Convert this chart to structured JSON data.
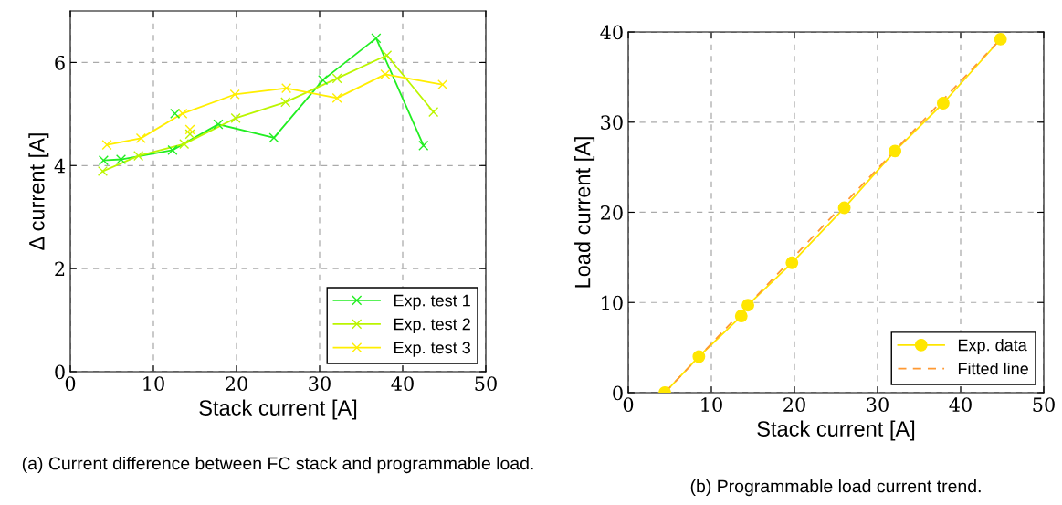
{
  "chart_data": [
    {
      "type": "line",
      "xlabel": "Stack current [A]",
      "ylabel": "Δ current [A]",
      "xlim": [
        0,
        50
      ],
      "ylim": [
        0,
        7
      ],
      "xticks": [
        0,
        10,
        20,
        30,
        40,
        50
      ],
      "yticks": [
        0,
        2,
        4,
        6
      ],
      "grid": true,
      "legend": "bottom right",
      "marker": "cross",
      "annotations": [
        "(a) Current difference between FC stack and programmable load."
      ],
      "series": [
        {
          "name": "Exp. test 1",
          "color": "#22ee22",
          "x": [
            4.0,
            6.1,
            12.3,
            17.8,
            24.5,
            30.4,
            36.8,
            42.5
          ],
          "values": [
            4.1,
            4.12,
            4.3,
            4.8,
            4.54,
            5.66,
            6.47,
            4.39
          ]
        },
        {
          "name": "Exp. test 2",
          "color": "#bbf500",
          "x": [
            3.9,
            8.2,
            13.7,
            19.9,
            25.9,
            32.1,
            38.1,
            43.7
          ],
          "values": [
            3.89,
            4.19,
            4.42,
            4.92,
            5.23,
            5.69,
            6.14,
            5.04
          ]
        },
        {
          "name": "Exp. test 3",
          "color": "#ffee00",
          "x": [
            4.4,
            8.5,
            13.5,
            19.8,
            26.0,
            32.1,
            37.9,
            44.8
          ],
          "values": [
            4.4,
            4.53,
            5.01,
            5.38,
            5.5,
            5.31,
            5.77,
            5.57
          ]
        },
        {
          "type": "scatter",
          "color": "#22ee22",
          "x": [
            12.6
          ],
          "values": [
            5.01
          ]
        },
        {
          "type": "scatter",
          "color": "#bbf500",
          "x": [
            14.4
          ],
          "values": [
            4.61
          ]
        },
        {
          "type": "scatter",
          "color": "#ffee00",
          "x": [
            14.4
          ],
          "values": [
            4.7
          ]
        }
      ]
    },
    {
      "type": "line",
      "xlabel": "Stack current [A]",
      "ylabel": "Load current [A]",
      "xlim": [
        0,
        50
      ],
      "ylim": [
        0,
        40
      ],
      "xticks": [
        0,
        10,
        20,
        30,
        40,
        50
      ],
      "yticks": [
        0,
        10,
        20,
        30,
        40
      ],
      "grid": true,
      "legend": "bottom right",
      "annotations": [
        "(b) Programmable load current trend."
      ],
      "series": [
        {
          "name": "Exp. data",
          "color": "#ffe600",
          "marker": "circle",
          "x": [
            4.4,
            8.5,
            13.6,
            14.4,
            19.7,
            26.0,
            32.1,
            37.9,
            44.8
          ],
          "values": [
            0,
            4.0,
            8.5,
            9.7,
            14.4,
            20.5,
            26.8,
            32.1,
            39.2
          ]
        },
        {
          "name": "Fitted line",
          "color": "#ff9933",
          "line_style": "dashed",
          "marker": "none",
          "x": [
            4.4,
            44.8
          ],
          "values": [
            0,
            39.2
          ]
        }
      ]
    }
  ]
}
